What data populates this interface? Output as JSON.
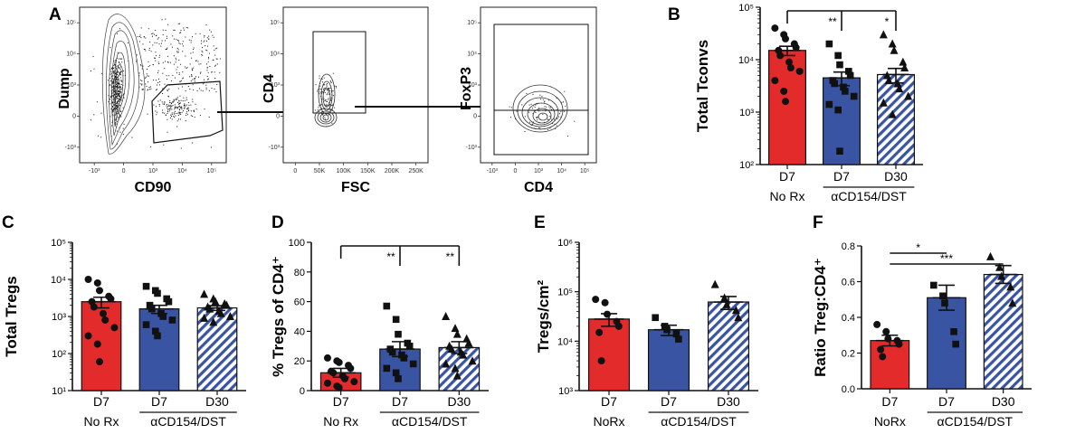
{
  "colors": {
    "red": "#e32b2b",
    "blue": "#3a54a4",
    "hatch_blue": "#3a54a4",
    "black": "#111111"
  },
  "flow_panel": {
    "letter": "A",
    "plots": [
      {
        "name": "dump-vs-cd90",
        "ylabel": "Dump",
        "xlabel": "CD90",
        "xticks": [
          "-10³",
          "0",
          "10³",
          "10⁴",
          "10⁵"
        ],
        "yticks": [
          "10⁵",
          "10⁴",
          "10³",
          "0",
          "-10³"
        ]
      },
      {
        "name": "cd4-vs-fsc",
        "ylabel": "CD4",
        "xlabel": "FSC",
        "xticks": [
          "0",
          "50K",
          "100K",
          "150K",
          "200K",
          "250K"
        ],
        "yticks": [
          "10⁵",
          "10⁴",
          "10³",
          "0",
          "-10³"
        ]
      },
      {
        "name": "foxp3-vs-cd4",
        "ylabel": "FoxP3",
        "xlabel": "CD4",
        "xticks": [
          "-10³",
          "0",
          "10³",
          "10⁴",
          "10⁵"
        ],
        "yticks": [
          "10⁵",
          "10⁴",
          "10³",
          "0",
          "-10³"
        ]
      }
    ]
  },
  "chart_data": [
    {
      "panel": "B",
      "type": "bar",
      "scale": "log",
      "ylabel": "Total Tconvs",
      "ylim": [
        100,
        100000
      ],
      "yticks": [
        "10⁵",
        "10⁴",
        "10³",
        "10²"
      ],
      "categories": [
        "D7",
        "D7",
        "D30"
      ],
      "group_labels": [
        "No Rx",
        "αCD154/DST"
      ],
      "values": [
        15000,
        4500,
        5200
      ],
      "sem": [
        3000,
        1300,
        1600
      ],
      "points": [
        [
          40000,
          30000,
          25000,
          20000,
          17000,
          15000,
          12000,
          9000,
          7000,
          6000,
          4000,
          2500,
          1600
        ],
        [
          20000,
          12000,
          8000,
          6000,
          5000,
          4000,
          3500,
          3000,
          2500,
          2000,
          1400,
          1100,
          180
        ],
        [
          30000,
          20000,
          15000,
          9000,
          7000,
          5000,
          4000,
          3500,
          2800,
          2000,
          1500,
          900
        ]
      ],
      "significance": [
        {
          "label": "**",
          "from": 0,
          "to": 1
        },
        {
          "label": "*",
          "from": 0,
          "to": 2
        }
      ]
    },
    {
      "panel": "C",
      "type": "bar",
      "scale": "log",
      "ylabel": "Total Tregs",
      "ylim": [
        10,
        100000
      ],
      "yticks": [
        "10⁵",
        "10⁴",
        "10³",
        "10²",
        "10¹"
      ],
      "categories": [
        "D7",
        "D7",
        "D30"
      ],
      "group_labels": [
        "No Rx",
        "αCD154/DST"
      ],
      "values": [
        2500,
        1600,
        1700
      ],
      "sem": [
        800,
        400,
        250
      ],
      "points": [
        [
          10000,
          8000,
          5000,
          3500,
          3000,
          2500,
          1800,
          1200,
          800,
          500,
          300,
          180,
          60
        ],
        [
          6500,
          5000,
          4200,
          3000,
          2500,
          2000,
          1600,
          1200,
          1000,
          800,
          600,
          400,
          300
        ],
        [
          4000,
          3000,
          2500,
          2200,
          2000,
          1800,
          1600,
          1400,
          1200,
          1000,
          900,
          700
        ]
      ],
      "significance": []
    },
    {
      "panel": "D",
      "type": "bar",
      "scale": "linear",
      "ylabel": "% Tregs of CD4⁺",
      "ylim": [
        0,
        100
      ],
      "yticks": [
        "0",
        "20",
        "40",
        "60",
        "80",
        "100"
      ],
      "categories": [
        "D7",
        "D7",
        "D30"
      ],
      "group_labels": [
        "No Rx",
        "αCD154/DST"
      ],
      "values": [
        12,
        28,
        29
      ],
      "sem": [
        3,
        5,
        4
      ],
      "points": [
        [
          22,
          20,
          19,
          17,
          15,
          13,
          12,
          10,
          8,
          6,
          5,
          3,
          2
        ],
        [
          57,
          48,
          38,
          32,
          30,
          28,
          26,
          24,
          22,
          18,
          15,
          12,
          8
        ],
        [
          50,
          42,
          38,
          35,
          32,
          30,
          28,
          26,
          24,
          20,
          18,
          15,
          10
        ]
      ],
      "significance": [
        {
          "label": "**",
          "from": 0,
          "to": 1
        },
        {
          "label": "**",
          "from": 0,
          "to": 2
        }
      ]
    },
    {
      "panel": "E",
      "type": "bar",
      "scale": "log",
      "ylabel": "Tregs/cm²",
      "ylim": [
        1000,
        1000000
      ],
      "yticks": [
        "10⁶",
        "10⁵",
        "10⁴",
        "10³"
      ],
      "categories": [
        "D7",
        "D7",
        "D30"
      ],
      "group_labels": [
        "NoRx",
        "αCD154/DST"
      ],
      "values": [
        28000,
        17000,
        62000
      ],
      "sem": [
        8000,
        4000,
        18000
      ],
      "points": [
        [
          70000,
          60000,
          35000,
          25000,
          20000,
          15000,
          4000
        ],
        [
          30000,
          20000,
          17000,
          14000,
          11000
        ],
        [
          140000,
          75000,
          55000,
          42000,
          30000
        ]
      ],
      "significance": []
    },
    {
      "panel": "F",
      "type": "bar",
      "scale": "linear",
      "ylabel": "Ratio Treg:CD4⁺",
      "ylim": [
        0,
        0.8
      ],
      "yticks": [
        "0.0",
        "0.2",
        "0.4",
        "0.6",
        "0.8"
      ],
      "categories": [
        "D7",
        "D7",
        "D30"
      ],
      "group_labels": [
        "NoRx",
        "αCD154/DST"
      ],
      "values": [
        0.27,
        0.51,
        0.64
      ],
      "sem": [
        0.03,
        0.07,
        0.05
      ],
      "points": [
        [
          0.36,
          0.32,
          0.28,
          0.27,
          0.25,
          0.22,
          0.18
        ],
        [
          0.58,
          0.52,
          0.48,
          0.32,
          0.25
        ],
        [
          0.74,
          0.68,
          0.63,
          0.57,
          0.48
        ]
      ],
      "significance": [
        {
          "label": "*",
          "from": 0,
          "to": 1
        },
        {
          "label": "***",
          "from": 0,
          "to": 2
        }
      ]
    }
  ]
}
